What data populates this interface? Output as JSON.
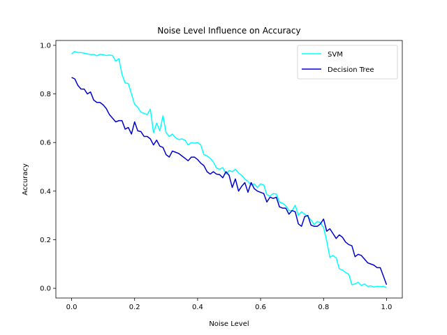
{
  "chart_data": {
    "type": "line",
    "title": "Noise Level Influence on Accuracy",
    "xlabel": "Noise Level",
    "ylabel": "Accuracy",
    "xlim": [
      -0.05,
      1.05
    ],
    "ylim": [
      -0.04,
      1.02
    ],
    "xticks": [
      0.0,
      0.2,
      0.4,
      0.6,
      0.8,
      1.0
    ],
    "xtick_labels": [
      "0.0",
      "0.2",
      "0.4",
      "0.6",
      "0.8",
      "1.0"
    ],
    "yticks": [
      0.0,
      0.2,
      0.4,
      0.6,
      0.8,
      1.0
    ],
    "ytick_labels": [
      "0.0",
      "0.2",
      "0.4",
      "0.6",
      "0.8",
      "1.0"
    ],
    "grid": false,
    "legend_position": "upper right",
    "series": [
      {
        "name": "SVM",
        "color": "#00ffff",
        "points": [
          [
            0.0,
            0.965
          ],
          [
            0.01,
            0.975
          ],
          [
            0.02,
            0.97
          ],
          [
            0.03,
            0.97
          ],
          [
            0.04,
            0.968
          ],
          [
            0.05,
            0.965
          ],
          [
            0.06,
            0.962
          ],
          [
            0.07,
            0.963
          ],
          [
            0.08,
            0.957
          ],
          [
            0.09,
            0.963
          ],
          [
            0.1,
            0.962
          ],
          [
            0.11,
            0.958
          ],
          [
            0.12,
            0.96
          ],
          [
            0.13,
            0.958
          ],
          [
            0.14,
            0.935
          ],
          [
            0.15,
            0.945
          ],
          [
            0.16,
            0.88
          ],
          [
            0.17,
            0.845
          ],
          [
            0.18,
            0.843
          ],
          [
            0.19,
            0.8
          ],
          [
            0.2,
            0.757
          ],
          [
            0.21,
            0.745
          ],
          [
            0.22,
            0.725
          ],
          [
            0.23,
            0.72
          ],
          [
            0.24,
            0.715
          ],
          [
            0.25,
            0.737
          ],
          [
            0.26,
            0.64
          ],
          [
            0.27,
            0.68
          ],
          [
            0.28,
            0.648
          ],
          [
            0.29,
            0.71
          ],
          [
            0.3,
            0.64
          ],
          [
            0.31,
            0.625
          ],
          [
            0.32,
            0.635
          ],
          [
            0.33,
            0.62
          ],
          [
            0.34,
            0.612
          ],
          [
            0.35,
            0.615
          ],
          [
            0.36,
            0.61
          ],
          [
            0.37,
            0.59
          ],
          [
            0.38,
            0.6
          ],
          [
            0.39,
            0.597
          ],
          [
            0.4,
            0.6
          ],
          [
            0.41,
            0.59
          ],
          [
            0.42,
            0.55
          ],
          [
            0.43,
            0.545
          ],
          [
            0.44,
            0.535
          ],
          [
            0.45,
            0.52
          ],
          [
            0.46,
            0.495
          ],
          [
            0.47,
            0.49
          ],
          [
            0.48,
            0.497
          ],
          [
            0.49,
            0.47
          ],
          [
            0.5,
            0.485
          ],
          [
            0.51,
            0.48
          ],
          [
            0.52,
            0.49
          ],
          [
            0.53,
            0.475
          ],
          [
            0.54,
            0.465
          ],
          [
            0.55,
            0.45
          ],
          [
            0.56,
            0.44
          ],
          [
            0.57,
            0.425
          ],
          [
            0.58,
            0.43
          ],
          [
            0.59,
            0.415
          ],
          [
            0.6,
            0.43
          ],
          [
            0.61,
            0.425
          ],
          [
            0.62,
            0.385
          ],
          [
            0.63,
            0.38
          ],
          [
            0.64,
            0.39
          ],
          [
            0.65,
            0.388
          ],
          [
            0.66,
            0.355
          ],
          [
            0.67,
            0.35
          ],
          [
            0.68,
            0.34
          ],
          [
            0.69,
            0.32
          ],
          [
            0.7,
            0.32
          ],
          [
            0.71,
            0.342
          ],
          [
            0.72,
            0.3
          ],
          [
            0.73,
            0.315
          ],
          [
            0.74,
            0.305
          ],
          [
            0.75,
            0.295
          ],
          [
            0.76,
            0.282
          ],
          [
            0.77,
            0.262
          ],
          [
            0.78,
            0.275
          ],
          [
            0.79,
            0.27
          ],
          [
            0.8,
            0.25
          ],
          [
            0.81,
            0.195
          ],
          [
            0.82,
            0.128
          ],
          [
            0.83,
            0.135
          ],
          [
            0.84,
            0.125
          ],
          [
            0.85,
            0.08
          ],
          [
            0.86,
            0.075
          ],
          [
            0.87,
            0.065
          ],
          [
            0.88,
            0.058
          ],
          [
            0.89,
            0.015
          ],
          [
            0.9,
            0.018
          ],
          [
            0.91,
            0.025
          ],
          [
            0.92,
            0.012
          ],
          [
            0.93,
            0.018
          ],
          [
            0.94,
            0.008
          ],
          [
            0.95,
            0.01
          ],
          [
            0.96,
            0.005
          ],
          [
            0.97,
            0.008
          ],
          [
            0.98,
            0.007
          ],
          [
            0.99,
            0.008
          ],
          [
            1.0,
            0.003
          ]
        ]
      },
      {
        "name": "Decision Tree",
        "color": "#0000cd",
        "points": [
          [
            0.0,
            0.868
          ],
          [
            0.01,
            0.862
          ],
          [
            0.02,
            0.835
          ],
          [
            0.03,
            0.82
          ],
          [
            0.04,
            0.82
          ],
          [
            0.05,
            0.8
          ],
          [
            0.06,
            0.808
          ],
          [
            0.07,
            0.775
          ],
          [
            0.08,
            0.765
          ],
          [
            0.09,
            0.765
          ],
          [
            0.1,
            0.755
          ],
          [
            0.11,
            0.74
          ],
          [
            0.12,
            0.715
          ],
          [
            0.13,
            0.7
          ],
          [
            0.14,
            0.685
          ],
          [
            0.15,
            0.69
          ],
          [
            0.16,
            0.69
          ],
          [
            0.17,
            0.655
          ],
          [
            0.18,
            0.662
          ],
          [
            0.19,
            0.635
          ],
          [
            0.2,
            0.685
          ],
          [
            0.21,
            0.648
          ],
          [
            0.22,
            0.645
          ],
          [
            0.23,
            0.625
          ],
          [
            0.24,
            0.625
          ],
          [
            0.25,
            0.615
          ],
          [
            0.26,
            0.59
          ],
          [
            0.27,
            0.61
          ],
          [
            0.28,
            0.585
          ],
          [
            0.29,
            0.58
          ],
          [
            0.3,
            0.55
          ],
          [
            0.31,
            0.54
          ],
          [
            0.32,
            0.565
          ],
          [
            0.33,
            0.56
          ],
          [
            0.34,
            0.555
          ],
          [
            0.35,
            0.545
          ],
          [
            0.36,
            0.535
          ],
          [
            0.37,
            0.525
          ],
          [
            0.38,
            0.54
          ],
          [
            0.39,
            0.54
          ],
          [
            0.4,
            0.53
          ],
          [
            0.41,
            0.515
          ],
          [
            0.42,
            0.505
          ],
          [
            0.43,
            0.48
          ],
          [
            0.44,
            0.47
          ],
          [
            0.45,
            0.48
          ],
          [
            0.46,
            0.47
          ],
          [
            0.47,
            0.468
          ],
          [
            0.48,
            0.455
          ],
          [
            0.49,
            0.48
          ],
          [
            0.5,
            0.465
          ],
          [
            0.51,
            0.415
          ],
          [
            0.52,
            0.45
          ],
          [
            0.53,
            0.4
          ],
          [
            0.54,
            0.42
          ],
          [
            0.55,
            0.435
          ],
          [
            0.56,
            0.395
          ],
          [
            0.57,
            0.435
          ],
          [
            0.58,
            0.41
          ],
          [
            0.59,
            0.4
          ],
          [
            0.6,
            0.395
          ],
          [
            0.61,
            0.39
          ],
          [
            0.62,
            0.355
          ],
          [
            0.63,
            0.375
          ],
          [
            0.64,
            0.37
          ],
          [
            0.65,
            0.375
          ],
          [
            0.66,
            0.335
          ],
          [
            0.67,
            0.33
          ],
          [
            0.68,
            0.33
          ],
          [
            0.69,
            0.305
          ],
          [
            0.7,
            0.32
          ],
          [
            0.71,
            0.315
          ],
          [
            0.72,
            0.265
          ],
          [
            0.73,
            0.255
          ],
          [
            0.74,
            0.295
          ],
          [
            0.75,
            0.3
          ],
          [
            0.76,
            0.26
          ],
          [
            0.77,
            0.255
          ],
          [
            0.78,
            0.255
          ],
          [
            0.79,
            0.265
          ],
          [
            0.8,
            0.285
          ],
          [
            0.81,
            0.235
          ],
          [
            0.82,
            0.245
          ],
          [
            0.83,
            0.225
          ],
          [
            0.84,
            0.205
          ],
          [
            0.85,
            0.22
          ],
          [
            0.86,
            0.21
          ],
          [
            0.87,
            0.19
          ],
          [
            0.88,
            0.18
          ],
          [
            0.89,
            0.175
          ],
          [
            0.9,
            0.13
          ],
          [
            0.91,
            0.14
          ],
          [
            0.92,
            0.135
          ],
          [
            0.93,
            0.12
          ],
          [
            0.94,
            0.105
          ],
          [
            0.95,
            0.1
          ],
          [
            0.96,
            0.095
          ],
          [
            0.97,
            0.085
          ],
          [
            0.98,
            0.085
          ],
          [
            0.99,
            0.05
          ],
          [
            1.0,
            0.015
          ]
        ]
      }
    ]
  }
}
